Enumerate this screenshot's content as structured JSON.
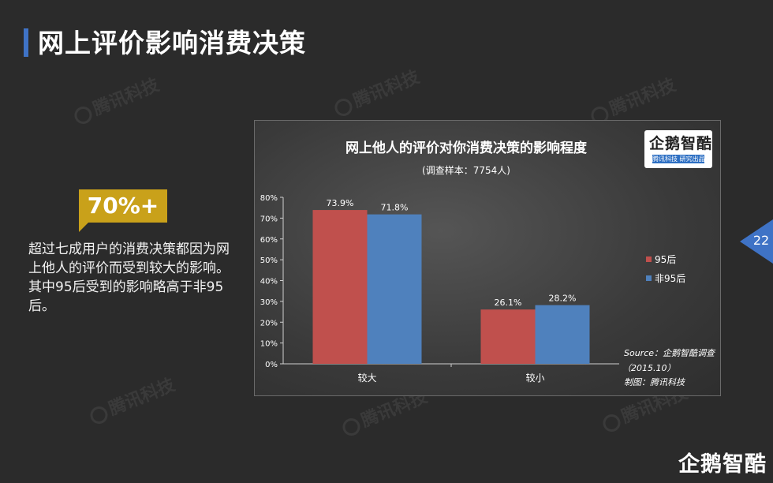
{
  "page": {
    "title": "网上评价影响消费决策",
    "page_number": "22",
    "brand": "企鹅智酷",
    "watermark": "腾讯科技"
  },
  "highlight": {
    "stat": "70%+",
    "summary": "超过七成用户的消费决策都因为网上他人的评价而受到较大的影响。其中95后受到的影响略高于非95后。"
  },
  "chart_data": {
    "type": "bar",
    "title": "网上他人的评价对你消费决策的影响程度",
    "subtitle": "(调查样本：7754人)",
    "categories": [
      "较大",
      "较小"
    ],
    "series": [
      {
        "name": "95后",
        "values": [
          73.9,
          26.1
        ],
        "color": "#c0504d"
      },
      {
        "name": "非95后",
        "values": [
          71.8,
          28.2
        ],
        "color": "#4f81bd"
      }
    ],
    "data_labels": [
      [
        "73.9%",
        "26.1%"
      ],
      [
        "71.8%",
        "28.2%"
      ]
    ],
    "ylim": [
      0,
      80
    ],
    "yticks": [
      "0%",
      "10%",
      "20%",
      "30%",
      "40%",
      "50%",
      "60%",
      "70%",
      "80%"
    ],
    "grid": false,
    "legend_position": "right",
    "source": "Source：企鹅智酷调查",
    "source_date": "（2015.10）",
    "credit": "制图：腾讯科技",
    "logo": {
      "name": "企鹅智酷",
      "sub": "腾讯科技 研究出品"
    }
  }
}
